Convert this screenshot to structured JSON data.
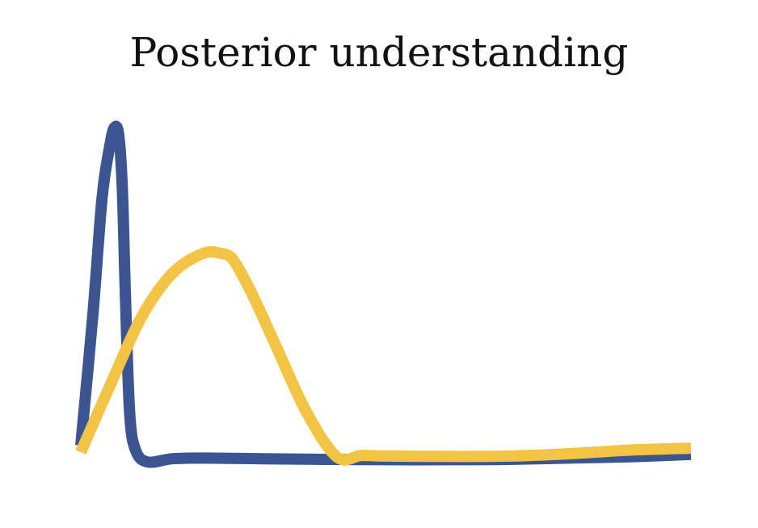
{
  "chart_data": {
    "type": "line",
    "title": "Posterior understanding",
    "xlabel": "",
    "ylabel": "",
    "xlim": [
      0,
      100
    ],
    "ylim": [
      0,
      100
    ],
    "grid": false,
    "axes_visible": false,
    "legend": "none",
    "series": [
      {
        "color": "#3b5593",
        "x": [
          0,
          2,
          3.5,
          4.8,
          5.5,
          6.2,
          6.8,
          7.3,
          8,
          9,
          11,
          15,
          20,
          30,
          40,
          50,
          60,
          70,
          80,
          90,
          100
        ],
        "y": [
          2,
          42,
          77,
          93,
          98,
          96,
          80,
          48,
          12,
          0.5,
          -3,
          -2,
          -1.8,
          -2,
          -2.2,
          -2.3,
          -2.3,
          -2.2,
          -1.8,
          -1.4,
          -0.7
        ]
      },
      {
        "color": "#f3c443",
        "x": [
          0,
          5,
          10,
          15,
          20,
          23,
          25,
          28,
          32,
          37,
          42,
          46,
          50,
          60,
          70,
          80,
          90,
          100
        ],
        "y": [
          0,
          21,
          41,
          54,
          60,
          60,
          58,
          48,
          32,
          12,
          -1.5,
          -1,
          -1.2,
          -1.3,
          -1.2,
          -0.5,
          0.6,
          1.2
        ]
      }
    ]
  }
}
